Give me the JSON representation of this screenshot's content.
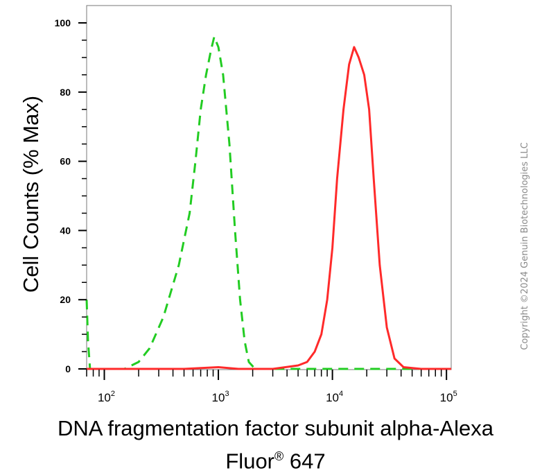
{
  "chart_data": {
    "type": "line",
    "xlabel": "DNA fragmentation factor subunit alpha-Alexa",
    "xlabel_line2": "Fluor",
    "xlabel_reg": "®",
    "xlabel_line2_tail": " 647",
    "ylabel": "Cell Counts (% Max)",
    "x_scale": "log",
    "xlim": [
      70,
      110000
    ],
    "ylim": [
      0,
      100
    ],
    "yticks": [
      0,
      20,
      40,
      60,
      80,
      100
    ],
    "xticks": [
      {
        "value": 100,
        "base": "10",
        "exp": "2"
      },
      {
        "value": 1000,
        "base": "10",
        "exp": "3"
      },
      {
        "value": 10000,
        "base": "10",
        "exp": "4"
      },
      {
        "value": 100000,
        "base": "10",
        "exp": "5"
      }
    ],
    "grid": false,
    "series": [
      {
        "style": "dashed",
        "color": "#22cc22",
        "points": [
          [
            70,
            20
          ],
          [
            72,
            8
          ],
          [
            75,
            0
          ],
          [
            90,
            0
          ],
          [
            150,
            0
          ],
          [
            200,
            2
          ],
          [
            250,
            6
          ],
          [
            330,
            15
          ],
          [
            450,
            30
          ],
          [
            560,
            45
          ],
          [
            630,
            60
          ],
          [
            700,
            75
          ],
          [
            780,
            85
          ],
          [
            860,
            92
          ],
          [
            920,
            96
          ],
          [
            1000,
            93
          ],
          [
            1100,
            85
          ],
          [
            1250,
            65
          ],
          [
            1400,
            40
          ],
          [
            1550,
            20
          ],
          [
            1700,
            8
          ],
          [
            1850,
            2
          ],
          [
            2100,
            0
          ],
          [
            3000,
            0
          ],
          [
            10000,
            0
          ],
          [
            110000,
            0
          ]
        ]
      },
      {
        "style": "solid",
        "color": "#ff2a2a",
        "points": [
          [
            70,
            0
          ],
          [
            500,
            0
          ],
          [
            1000,
            0.5
          ],
          [
            1500,
            0
          ],
          [
            3000,
            0
          ],
          [
            5000,
            1
          ],
          [
            6000,
            2
          ],
          [
            7000,
            5
          ],
          [
            8000,
            10
          ],
          [
            9000,
            20
          ],
          [
            10000,
            35
          ],
          [
            11000,
            55
          ],
          [
            12500,
            75
          ],
          [
            14000,
            88
          ],
          [
            15500,
            93
          ],
          [
            17000,
            90
          ],
          [
            19000,
            85
          ],
          [
            21000,
            75
          ],
          [
            23000,
            55
          ],
          [
            26000,
            30
          ],
          [
            30000,
            12
          ],
          [
            35000,
            3
          ],
          [
            42000,
            0.5
          ],
          [
            60000,
            0
          ],
          [
            110000,
            0
          ]
        ]
      }
    ]
  },
  "watermark": "Copyright ©2024 Genuin Biotechnologies LLC"
}
